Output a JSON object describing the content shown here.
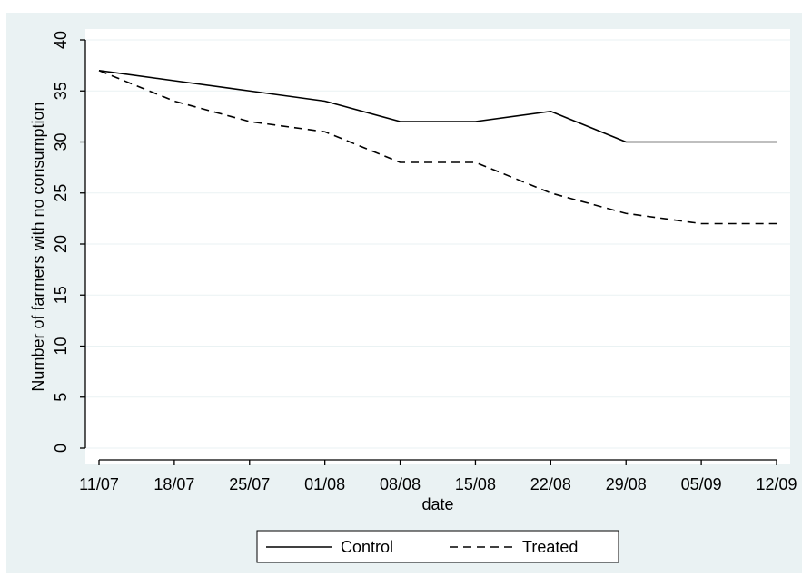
{
  "chart_data": {
    "type": "line",
    "xlabel": "date",
    "ylabel": "Number of farmers with no consumption",
    "x_unit": "date (dd/mm)",
    "x": [
      "11/07",
      "18/07",
      "25/07",
      "01/08",
      "08/08",
      "15/08",
      "22/08",
      "29/08",
      "05/09",
      "12/09"
    ],
    "x_ticks": [
      "11/07",
      "18/07",
      "25/07",
      "01/08",
      "08/08",
      "15/08",
      "22/08",
      "29/08",
      "05/09",
      "12/09"
    ],
    "y_ticks": [
      "0",
      "5",
      "10",
      "15",
      "20",
      "25",
      "30",
      "35",
      "40"
    ],
    "ylim": [
      0,
      40
    ],
    "grid": "horizontal",
    "legend_position": "bottom",
    "series": [
      {
        "name": "Control",
        "line_style": "solid",
        "color": "#000000",
        "values": [
          37,
          36,
          35,
          34,
          32,
          32,
          33,
          30,
          30,
          30
        ]
      },
      {
        "name": "Treated",
        "line_style": "dashed",
        "color": "#000000",
        "values": [
          37,
          34,
          32,
          31,
          28,
          28,
          25,
          23,
          22,
          22
        ]
      }
    ]
  },
  "colors": {
    "outer_background": "#eaf2f3",
    "plot_background": "#ffffff",
    "grid": "#eaf2f3",
    "axis": "#000000"
  }
}
